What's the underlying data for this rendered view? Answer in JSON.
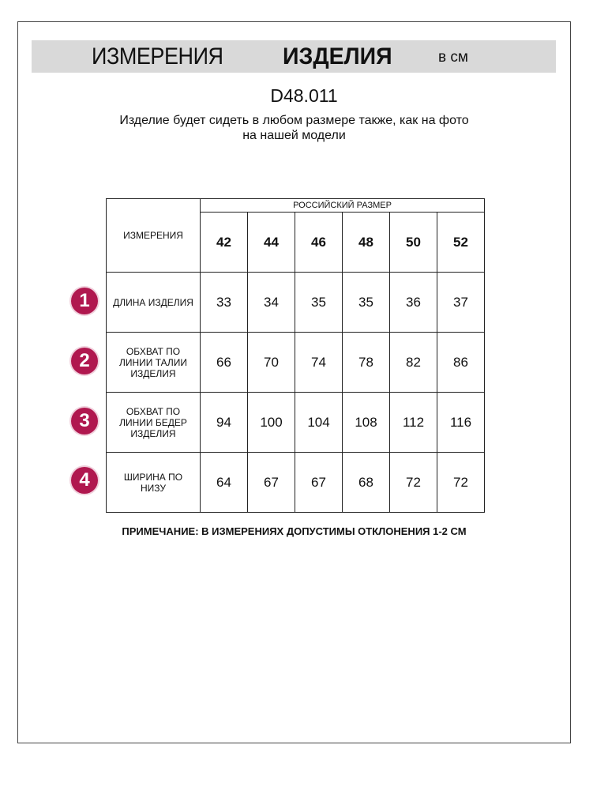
{
  "title": {
    "part1": "ИЗМЕРЕНИЯ",
    "part2": "ИЗДЕЛИЯ",
    "unit": "в см"
  },
  "product_code": "D48.011",
  "subtitle": {
    "line1": "Изделие будет сидеть в любом размере также, как на фото",
    "line2": "на нашей модели"
  },
  "badge_color": "#b0184f",
  "table": {
    "corner_label": "ИЗМЕРЕНИЯ",
    "group_header": "РОССИЙСКИЙ РАЗМЕР",
    "sizes": [
      "42",
      "44",
      "46",
      "48",
      "50",
      "52"
    ],
    "rows": [
      {
        "num": "1",
        "label": "ДЛИНА ИЗДЕЛИЯ",
        "values": [
          "33",
          "34",
          "35",
          "35",
          "36",
          "37"
        ]
      },
      {
        "num": "2",
        "label": "ОБХВАТ ПО ЛИНИИ ТАЛИИ ИЗДЕЛИЯ",
        "values": [
          "66",
          "70",
          "74",
          "78",
          "82",
          "86"
        ]
      },
      {
        "num": "3",
        "label": "ОБХВАТ ПО ЛИНИИ БЕДЕР ИЗДЕЛИЯ",
        "values": [
          "94",
          "100",
          "104",
          "108",
          "112",
          "116"
        ]
      },
      {
        "num": "4",
        "label": "ШИРИНА ПО НИЗУ",
        "values": [
          "64",
          "67",
          "67",
          "68",
          "72",
          "72"
        ]
      }
    ]
  },
  "note": "ПРИМЕЧАНИЕ: В ИЗМЕРЕНИЯХ ДОПУСТИМЫ ОТКЛОНЕНИЯ 1-2 СМ"
}
